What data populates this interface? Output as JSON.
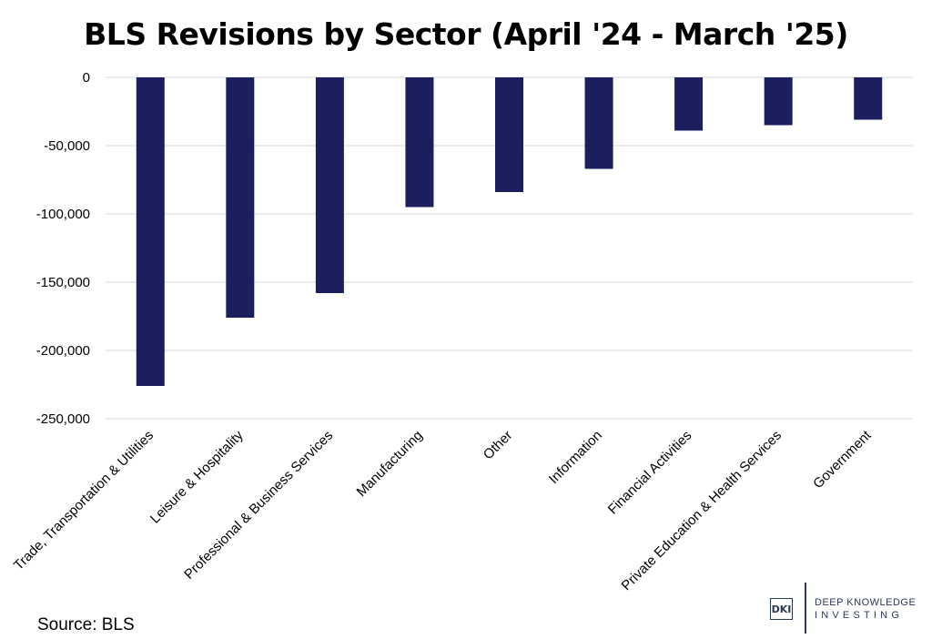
{
  "chart_data": {
    "type": "bar",
    "title": "BLS Revisions by Sector (April '24 - March '25)",
    "categories": [
      "Trade, Transportation & Utilities",
      "Leisure & Hospitality",
      "Professional & Business Services",
      "Manufacturing",
      "Other",
      "Information",
      "Financial Activities",
      "Private Education & Health Services",
      "Government"
    ],
    "values": [
      -226000,
      -176000,
      -158000,
      -95000,
      -84000,
      -67000,
      -39000,
      -35000,
      -31000
    ],
    "ylim": [
      -250000,
      0
    ],
    "yticks": [
      0,
      -50000,
      -100000,
      -150000,
      -200000,
      -250000
    ],
    "ytick_labels": [
      "0",
      "-50,000",
      "-100,000",
      "-150,000",
      "-200,000",
      "-250,000"
    ],
    "xlabel": "",
    "ylabel": "",
    "grid": true,
    "bar_color": "#1b1f5e",
    "grid_color": "#d9d9d9"
  },
  "source": "Source: BLS",
  "logo": {
    "mark": "DKI",
    "line1": "DEEP KNOWLEDGE",
    "line2": "INVESTING",
    "color": "#2a3a57"
  }
}
